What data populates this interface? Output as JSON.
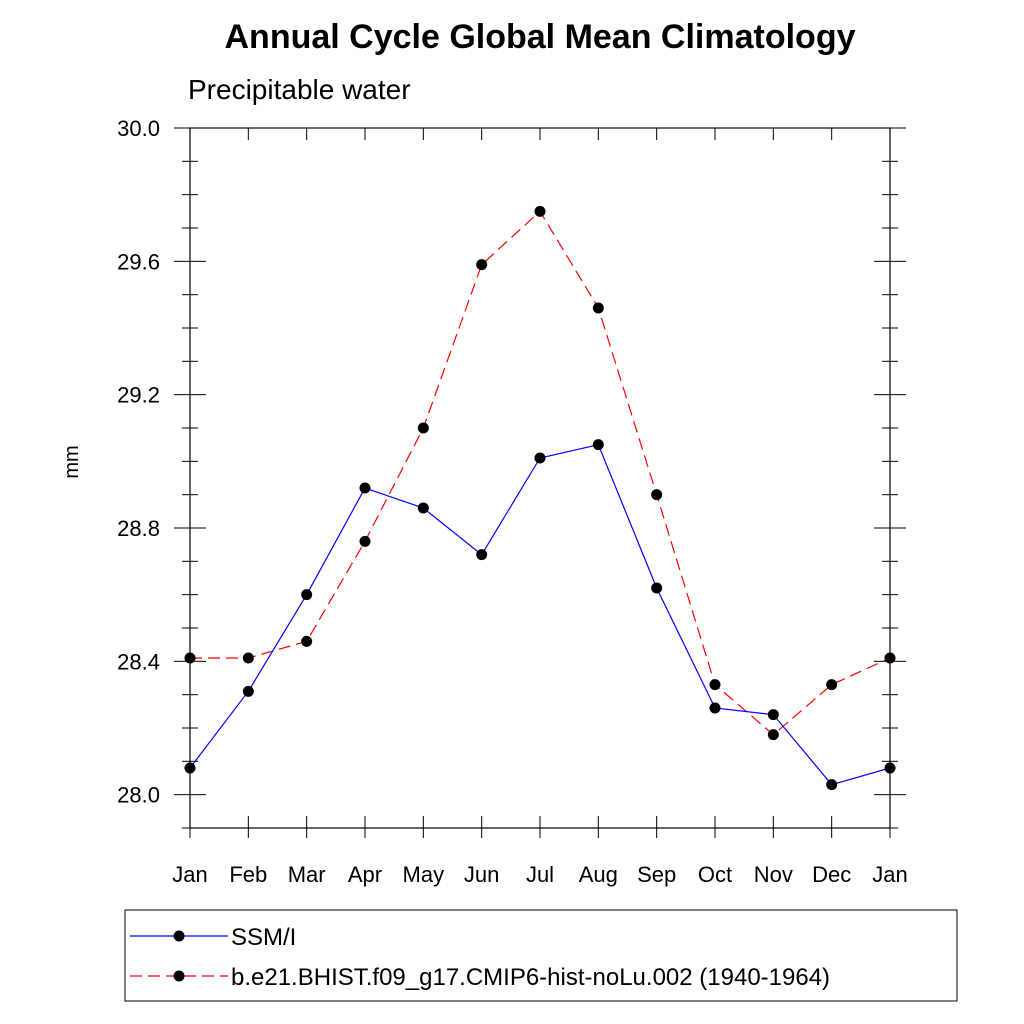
{
  "chart_data": {
    "type": "line",
    "title": "Annual Cycle Global Mean Climatology",
    "subtitle": "Precipitable water",
    "ylabel": "mm",
    "xlabel": "",
    "categories": [
      "Jan",
      "Feb",
      "Mar",
      "Apr",
      "May",
      "Jun",
      "Jul",
      "Aug",
      "Sep",
      "Oct",
      "Nov",
      "Dec",
      "Jan"
    ],
    "ylim": [
      27.9,
      30.0
    ],
    "yticks": [
      28.0,
      28.4,
      28.8,
      29.2,
      29.6,
      30.0
    ],
    "ytick_labels": [
      "28.0",
      "28.4",
      "28.8",
      "29.2",
      "29.6",
      "30.0"
    ],
    "legend_position": "bottom",
    "grid": false,
    "series": [
      {
        "name": "SSM/I",
        "color": "#0000ff",
        "line_style": "solid",
        "marker": "filled-circle",
        "values": [
          28.08,
          28.31,
          28.6,
          28.92,
          28.86,
          28.72,
          29.01,
          29.05,
          28.62,
          28.26,
          28.24,
          28.03,
          28.08
        ]
      },
      {
        "name": "b.e21.BHIST.f09_g17.CMIP6-hist-noLu.002 (1940-1964)",
        "color": "#ff0000",
        "line_style": "dashed",
        "marker": "filled-circle",
        "values": [
          28.41,
          28.41,
          28.46,
          28.76,
          29.1,
          29.59,
          29.75,
          29.46,
          28.9,
          28.33,
          28.18,
          28.33,
          28.41
        ]
      }
    ]
  }
}
